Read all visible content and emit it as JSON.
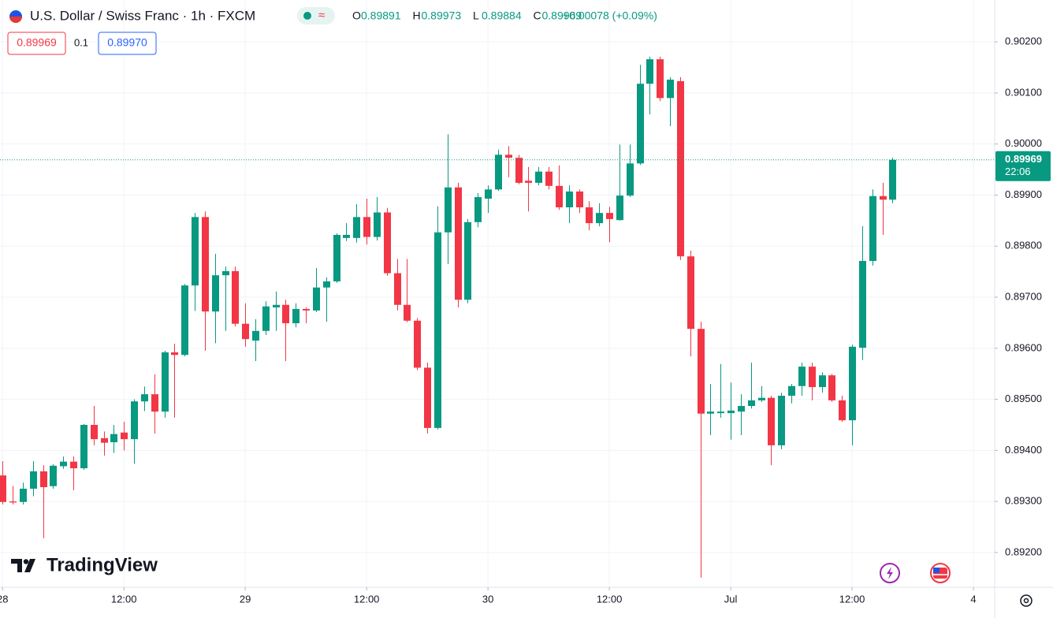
{
  "header": {
    "title": "U.S. Dollar / Swiss Franc · 1h · FXCM",
    "ohlc": [
      {
        "label": "O",
        "value": "0.89891"
      },
      {
        "label": "H",
        "value": "0.89973"
      },
      {
        "label": "L",
        "value": "0.89884"
      },
      {
        "label": "C",
        "value": "0.89969"
      }
    ],
    "change": "+0.00078 (+0.09%)",
    "sell": "0.89969",
    "spread": "0.1",
    "buy": "0.89970"
  },
  "watermark": "TradingView",
  "chart_data": {
    "type": "candlestick",
    "up_color": "#089981",
    "down_color": "#f23645",
    "grid": true,
    "x": [
      0,
      1,
      2,
      3,
      4,
      5,
      6,
      7,
      8,
      9,
      10,
      11,
      12,
      13,
      14,
      15,
      16,
      17,
      18,
      19,
      20,
      21,
      22,
      23,
      24,
      25,
      26,
      27,
      28,
      29,
      30,
      31,
      32,
      33,
      34,
      35,
      36,
      37,
      38,
      39,
      40,
      41,
      42,
      43,
      44,
      45,
      46,
      47,
      48,
      49,
      50,
      51,
      52,
      53,
      54,
      55,
      56,
      57,
      58,
      59,
      60,
      61,
      62,
      63,
      64,
      65,
      66,
      67,
      68,
      69,
      70,
      71,
      72,
      73,
      74,
      75,
      76,
      77,
      78,
      79,
      80,
      81,
      82,
      83,
      84,
      85,
      86,
      87,
      88
    ],
    "open": [
      0.89351,
      0.893,
      0.89299,
      0.89325,
      0.89359,
      0.8933,
      0.89369,
      0.89378,
      0.89365,
      0.8945,
      0.89424,
      0.89416,
      0.89435,
      0.89422,
      0.89496,
      0.8951,
      0.89476,
      0.89592,
      0.89587,
      0.89723,
      0.89857,
      0.89672,
      0.89743,
      0.89751,
      0.89648,
      0.89615,
      0.89634,
      0.8968,
      0.89685,
      0.89649,
      0.89677,
      0.89674,
      0.89719,
      0.89731,
      0.89816,
      0.89816,
      0.89857,
      0.89818,
      0.89866,
      0.89747,
      0.89685,
      0.89654,
      0.89562,
      0.89444,
      0.89827,
      0.89915,
      0.89695,
      0.89847,
      0.89893,
      0.89911,
      0.89979,
      0.89973,
      0.89928,
      0.89924,
      0.89946,
      0.89918,
      0.89876,
      0.89907,
      0.89876,
      0.89845,
      0.89865,
      0.89851,
      0.89899,
      0.89962,
      0.90118,
      0.90166,
      0.9009,
      0.90123,
      0.8978,
      0.89638,
      0.89472,
      0.89473,
      0.89473,
      0.89476,
      0.89487,
      0.89498,
      0.89503,
      0.8941,
      0.89507,
      0.89526,
      0.89564,
      0.89524,
      0.89547,
      0.89498,
      0.89459,
      0.89601,
      0.89771,
      0.89898,
      0.89891
    ],
    "high": [
      0.89379,
      0.8933,
      0.89337,
      0.89379,
      0.89371,
      0.89373,
      0.89388,
      0.89388,
      0.89452,
      0.89487,
      0.89437,
      0.8945,
      0.89456,
      0.895,
      0.89525,
      0.89549,
      0.89595,
      0.89609,
      0.89726,
      0.89865,
      0.89868,
      0.89785,
      0.8976,
      0.8976,
      0.89688,
      0.89657,
      0.89692,
      0.89711,
      0.89695,
      0.89688,
      0.8968,
      0.89757,
      0.89739,
      0.89825,
      0.89845,
      0.89882,
      0.89893,
      0.89896,
      0.89875,
      0.89775,
      0.89775,
      0.89659,
      0.89572,
      0.89878,
      0.90019,
      0.89924,
      0.89853,
      0.89904,
      0.89919,
      0.89989,
      0.89996,
      0.89979,
      0.89955,
      0.89955,
      0.89955,
      0.89958,
      0.89919,
      0.89911,
      0.89888,
      0.89884,
      0.89877,
      0.89999,
      0.89999,
      0.90155,
      0.90171,
      0.90171,
      0.90131,
      0.90131,
      0.89791,
      0.89652,
      0.8953,
      0.89569,
      0.89533,
      0.8951,
      0.89572,
      0.89526,
      0.89507,
      0.89513,
      0.8953,
      0.89572,
      0.89572,
      0.89553,
      0.8955,
      0.89507,
      0.89607,
      0.89839,
      0.89911,
      0.89924,
      0.89973
    ],
    "low": [
      0.89294,
      0.89294,
      0.89294,
      0.8931,
      0.89228,
      0.89325,
      0.89364,
      0.89322,
      0.89362,
      0.8941,
      0.8939,
      0.89395,
      0.894,
      0.89374,
      0.89477,
      0.89433,
      0.89464,
      0.89464,
      0.89584,
      0.89673,
      0.89595,
      0.8961,
      0.89634,
      0.89643,
      0.89603,
      0.89575,
      0.89626,
      0.89634,
      0.89575,
      0.89641,
      0.89649,
      0.89671,
      0.89652,
      0.89728,
      0.8981,
      0.89807,
      0.89803,
      0.89811,
      0.89742,
      0.89674,
      0.89651,
      0.89557,
      0.89433,
      0.89441,
      0.89765,
      0.8968,
      0.89688,
      0.89837,
      0.89865,
      0.89908,
      0.89935,
      0.89921,
      0.89868,
      0.89919,
      0.89911,
      0.89871,
      0.89845,
      0.89865,
      0.89831,
      0.89839,
      0.89808,
      0.8985,
      0.89896,
      0.89959,
      0.90058,
      0.90084,
      0.90035,
      0.89773,
      0.89584,
      0.89151,
      0.8943,
      0.89464,
      0.89421,
      0.8943,
      0.89482,
      0.89495,
      0.89371,
      0.89402,
      0.89492,
      0.89507,
      0.89498,
      0.89513,
      0.89495,
      0.89456,
      0.8941,
      0.89577,
      0.89762,
      0.89822,
      0.89884
    ],
    "close": [
      0.89299,
      0.89298,
      0.89325,
      0.89359,
      0.89328,
      0.8937,
      0.89378,
      0.89365,
      0.8945,
      0.89422,
      0.89415,
      0.89432,
      0.89422,
      0.89496,
      0.8951,
      0.89476,
      0.89592,
      0.89587,
      0.89723,
      0.89857,
      0.89672,
      0.89743,
      0.89751,
      0.89648,
      0.89618,
      0.89634,
      0.89682,
      0.89685,
      0.89649,
      0.89677,
      0.89674,
      0.89719,
      0.89731,
      0.89822,
      0.89822,
      0.89857,
      0.89818,
      0.89866,
      0.89747,
      0.89685,
      0.89654,
      0.89562,
      0.89444,
      0.89827,
      0.89915,
      0.89695,
      0.89847,
      0.89896,
      0.89911,
      0.89979,
      0.89973,
      0.89924,
      0.89924,
      0.89946,
      0.89918,
      0.89876,
      0.89907,
      0.89876,
      0.89845,
      0.89865,
      0.89853,
      0.89899,
      0.89962,
      0.90118,
      0.90166,
      0.9009,
      0.90126,
      0.8978,
      0.89638,
      0.89472,
      0.89476,
      0.89476,
      0.89478,
      0.89487,
      0.89498,
      0.89503,
      0.8941,
      0.89507,
      0.89526,
      0.89564,
      0.89524,
      0.89547,
      0.89498,
      0.89459,
      0.89603,
      0.89771,
      0.89898,
      0.89891,
      0.89969
    ],
    "xlim": [
      -0.25,
      98.1
    ],
    "ylim": [
      0.89132,
      0.90282
    ],
    "xticks": [
      {
        "value": 0,
        "label": "28"
      },
      {
        "value": 12,
        "label": "12:00"
      },
      {
        "value": 24,
        "label": "29"
      },
      {
        "value": 36,
        "label": "12:00"
      },
      {
        "value": 48,
        "label": "30"
      },
      {
        "value": 60,
        "label": "12:00"
      },
      {
        "value": 72,
        "label": "Jul"
      },
      {
        "value": 84,
        "label": "12:00"
      },
      {
        "value": 96,
        "label": "4"
      }
    ],
    "yticks": [
      {
        "value": 0.902,
        "label": "0.90200"
      },
      {
        "value": 0.901,
        "label": "0.90100"
      },
      {
        "value": 0.9,
        "label": "0.90000"
      },
      {
        "value": 0.899,
        "label": "0.89900"
      },
      {
        "value": 0.898,
        "label": "0.89800"
      },
      {
        "value": 0.897,
        "label": "0.89700"
      },
      {
        "value": 0.896,
        "label": "0.89600"
      },
      {
        "value": 0.895,
        "label": "0.89500"
      },
      {
        "value": 0.894,
        "label": "0.89400"
      },
      {
        "value": 0.893,
        "label": "0.89300"
      },
      {
        "value": 0.892,
        "label": "0.89200"
      }
    ],
    "last_price": {
      "value": 0.89969,
      "label": "0.89969"
    },
    "countdown": "22:06"
  }
}
